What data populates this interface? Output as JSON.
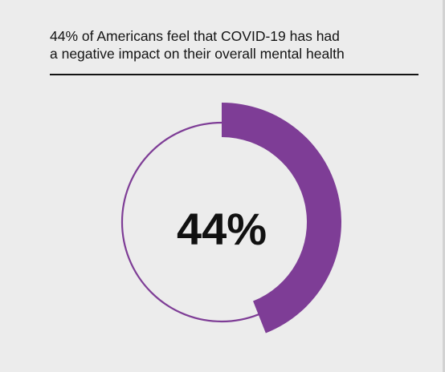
{
  "title": {
    "line1": "44% of Americans feel that COVID-19 has had",
    "line2": "a negative impact on their overall mental health"
  },
  "chart_data": {
    "type": "pie",
    "variant": "donut",
    "title": "44% of Americans feel that COVID-19 has had a negative impact on their overall mental health",
    "center_label": "44%",
    "slices": [
      {
        "value": 44,
        "color": "#7e3d96"
      },
      {
        "value": 56,
        "color": "#ececec"
      }
    ],
    "ring_outline_color": "#7e3d96"
  }
}
